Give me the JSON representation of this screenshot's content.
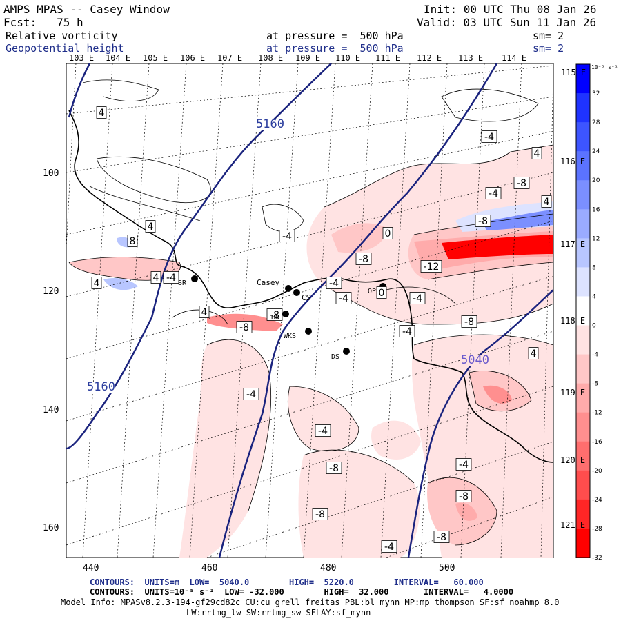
{
  "header": {
    "title": "AMPS MPAS -- Casey Window",
    "forecast": "Fcst:   75 h",
    "init": "Init: 00 UTC Thu 08 Jan 26",
    "valid": "Valid: 03 UTC Sun 11 Jan 26",
    "field1_name": "Relative vorticity",
    "field1_level": "at pressure =  500 hPa",
    "field1_sm": "sm= 2",
    "field2_name": "Geopotential height",
    "field2_level": "at pressure =  500 hPa",
    "field2_sm": "sm= 2"
  },
  "lon_labels": [
    "103 E",
    "104 E",
    "105 E",
    "106 E",
    "107 E",
    "108 E",
    "109 E",
    "110 E",
    "111 E",
    "112 E",
    "113 E",
    "114 E",
    "115 E"
  ],
  "lat_right_labels": [
    "116 E",
    "117 E",
    "118 E",
    "119 E",
    "120 E",
    "121 E"
  ],
  "x_grid_labels": [
    "440",
    "460",
    "480",
    "500"
  ],
  "y_grid_labels": [
    "100",
    "120",
    "140",
    "160"
  ],
  "stations": [
    {
      "name": "SR"
    },
    {
      "name": "Casey"
    },
    {
      "name": "CS"
    },
    {
      "name": "HN"
    },
    {
      "name": "WKS"
    },
    {
      "name": "DS"
    },
    {
      "name": "OP"
    }
  ],
  "height_contour_labels": [
    "5160",
    "5160",
    "5040"
  ],
  "vorticity_labels": [
    "4",
    "4",
    "8",
    "4",
    "4",
    "-4",
    "4",
    "-4",
    "-8",
    "-8",
    "-4",
    "-4",
    "0",
    "-8",
    "-12",
    "-4",
    "-8",
    "-4",
    "-4",
    "-4",
    "-8",
    "-4",
    "-8",
    "-8",
    "-4",
    "4",
    "-8",
    "4",
    "-8",
    "-4",
    "-4",
    "-8",
    "4",
    "0"
  ],
  "colorbar": {
    "unit": "10⁻⁵ s⁻¹",
    "ticks": [
      "32",
      "28",
      "24",
      "20",
      "16",
      "12",
      "8",
      "4",
      "0",
      "-4",
      "-8",
      "-12",
      "-16",
      "-20",
      "-24",
      "-28",
      "-32"
    ],
    "colors": [
      "#0000ff",
      "#1f33ff",
      "#3d55ff",
      "#5b73ff",
      "#7b8fff",
      "#9aabff",
      "#b8c6ff",
      "#dde3ff",
      "#ffffff",
      "#ffe3e3",
      "#ffc7c7",
      "#ffabab",
      "#ff8f8f",
      "#ff6e6e",
      "#ff4d4d",
      "#ff2626",
      "#ff0000"
    ]
  },
  "footer": {
    "line1": "CONTOURS:  UNITS=m  LOW=  5040.0        HIGH=  5220.0        INTERVAL=   60.000",
    "line2": "CONTOURS:  UNITS=10⁻⁵ s⁻¹  LOW= -32.000        HIGH=  32.000       INTERVAL=   4.0000",
    "line3": "Model Info: MPASv8.2.3-194-gf29cd82c CU:cu_grell_freitas PBL:bl_mynn MP:mp_thompson SF:sf_noahmp 8.0",
    "line4": "LW:rrtmg_lw SW:rrtmg_sw SFLAY:sf_mynn"
  }
}
